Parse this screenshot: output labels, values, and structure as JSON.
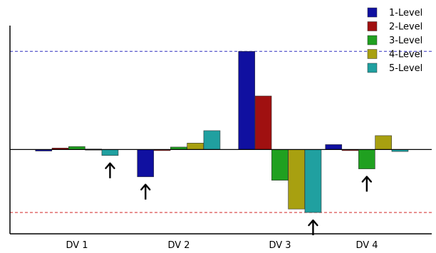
{
  "chart_data": {
    "type": "bar",
    "categories": [
      "DV 1",
      "DV 2",
      "DV 3",
      "DV 4"
    ],
    "series": [
      {
        "name": "1-Level",
        "color": "#1010A0",
        "values": [
          -0.03,
          -0.55,
          1.98,
          0.1
        ]
      },
      {
        "name": "2-Level",
        "color": "#A01010",
        "values": [
          0.03,
          -0.01,
          1.08,
          0.0
        ]
      },
      {
        "name": "3-Level",
        "color": "#20A020",
        "values": [
          0.06,
          0.05,
          -0.62,
          -0.39
        ]
      },
      {
        "name": "4-Level",
        "color": "#A8A010",
        "values": [
          0.01,
          0.13,
          -1.2,
          0.28
        ]
      },
      {
        "name": "5-Level",
        "color": "#20A0A0",
        "values": [
          -0.12,
          0.38,
          -1.27,
          -0.04
        ]
      }
    ],
    "reference_lines": [
      {
        "value": 1.98,
        "color": "#3030C0",
        "style": "dashed"
      },
      {
        "value": -1.27,
        "color": "#D02020",
        "style": "dashed"
      }
    ],
    "markers": [
      {
        "category": "DV 1",
        "series": "5-Level"
      },
      {
        "category": "DV 2",
        "series": "1-Level"
      },
      {
        "category": "DV 3",
        "series": "5-Level"
      },
      {
        "category": "DV 4",
        "series": "3-Level"
      }
    ],
    "ylim": [
      -1.7,
      2.5
    ],
    "legend_position": "top-right",
    "grid": false
  }
}
